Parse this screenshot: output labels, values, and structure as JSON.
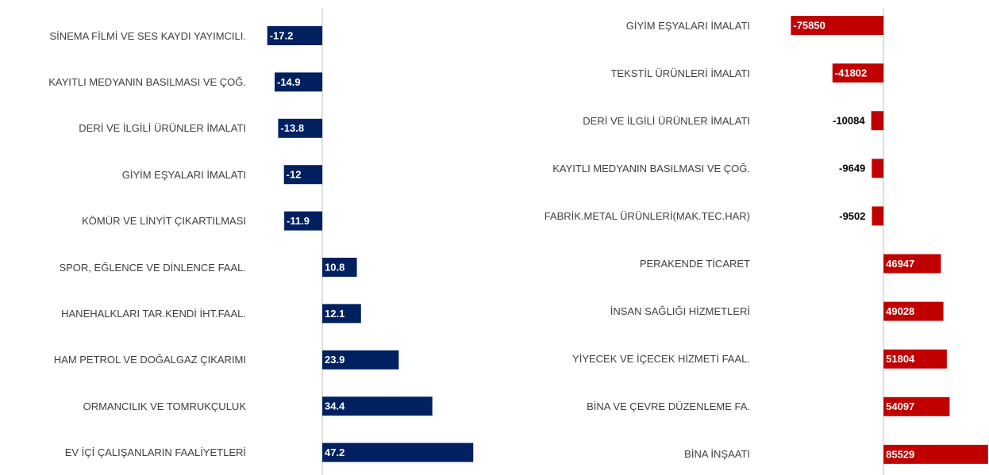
{
  "chart_data": [
    {
      "type": "bar",
      "orientation": "horizontal",
      "color": "#002060",
      "xlim": [
        -18,
        48
      ],
      "categories": [
        "SİNEMA FİLMİ VE SES KAYDI YAYIMCILI.",
        "KAYITLI MEDYANIN BASILMASI VE ÇOĞ.",
        "DERİ VE İLGİLİ ÜRÜNLER İMALATI",
        "GİYİM EŞYALARI İMALATI",
        "KÖMÜR VE LİNYİT ÇIKARTILMASI",
        "SPOR, EĞLENCE VE DİNLENCE FAAL.",
        "HANEHALKLARI TAR.KENDİ İHT.FAAL.",
        "HAM PETROL VE DOĞALGAZ ÇIKARIMI",
        "ORMANCILIK VE TOMRUKÇULUK",
        "EV İÇİ ÇALIŞANLARIN FAALİYETLERİ"
      ],
      "values": [
        -17.2,
        -14.9,
        -13.8,
        -12,
        -11.9,
        10.8,
        12.1,
        23.9,
        34.4,
        47.2
      ]
    },
    {
      "type": "bar",
      "orientation": "horizontal",
      "color": "#c00000",
      "xlim": [
        -80000,
        86000
      ],
      "categories": [
        "GİYİM EŞYALARI İMALATI",
        "TEKSTİL ÜRÜNLERİ İMALATI",
        "DERİ VE İLGİLİ ÜRÜNLER İMALATI",
        "KAYITLI MEDYANIN BASILMASI VE ÇOĞ.",
        "FABRİK.METAL ÜRÜNLERİ(MAK.TEC.HAR)",
        "PERAKENDE TİCARET",
        "İNSAN SAĞLIĞI HİZMETLERİ",
        "YİYECEK VE İÇECEK HİZMETİ FAAL.",
        "BİNA VE ÇEVRE DÜZENLEME FA.",
        "BİNA İNŞAATI"
      ],
      "values": [
        -75850,
        -41802,
        -10084,
        -9649,
        -9502,
        46947,
        49028,
        51804,
        54097,
        85529
      ]
    }
  ]
}
